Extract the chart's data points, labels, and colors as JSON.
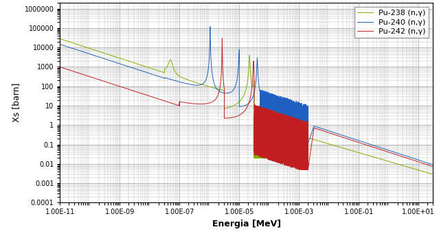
{
  "title": "",
  "xlabel": "Energia [MeV]",
  "ylabel": "Xs [barn]",
  "xlim_lo": 1e-11,
  "xlim_hi": 30,
  "ylim_lo": 0.0001,
  "ylim_hi": 2000000.0,
  "colors": {
    "pu238": "#80b000",
    "pu240": "#2060c0",
    "pu242": "#c02020"
  },
  "legend": [
    "Pu-238 (n,γ)",
    "Pu-240 (n,γ)",
    "Pu-242 (n,γ)"
  ],
  "background": "#ffffff",
  "grid_color": "#b0b0b0"
}
